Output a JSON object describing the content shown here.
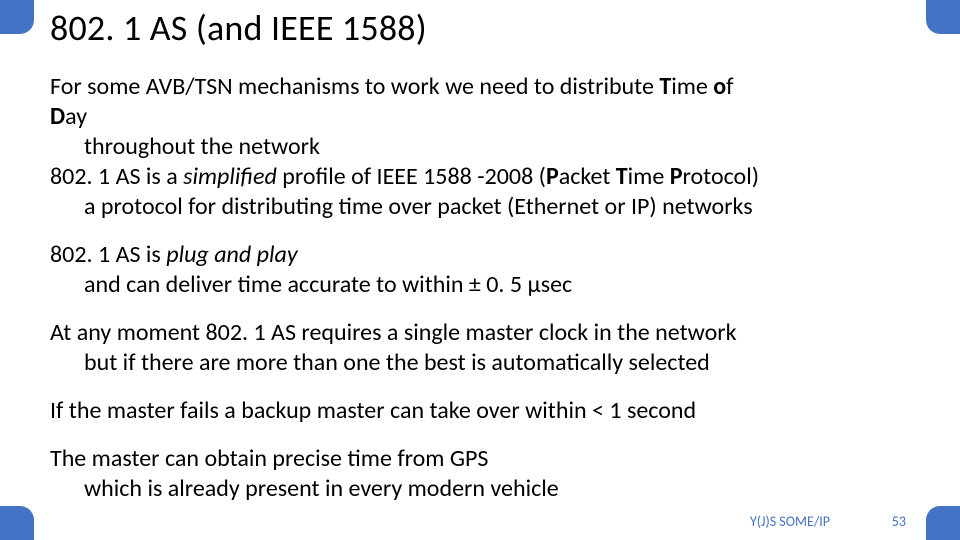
{
  "accent_color": "#4472c4",
  "title": "802. 1 AS (and IEEE 1588)",
  "p1": {
    "l1a": "For some AVB/TSN mechanisms to work we need to distribute ",
    "l1b_T": "T",
    "l1b_rest": "ime ",
    "l1c_o": "o",
    "l1c_rest": "f",
    "l2_D": "D",
    "l2_rest": "ay",
    "l3": "throughout the network",
    "l4a": "802. 1 AS is a ",
    "l4b": "simplified",
    "l4c": " profile of IEEE 1588 -2008 (",
    "l4d_P": "P",
    "l4d_rest": "acket ",
    "l4e_T": "T",
    "l4e_rest": "ime ",
    "l4f_P": "P",
    "l4f_rest": "rotocol)",
    "l5": "a protocol for distributing time over packet (Ethernet or IP) networks"
  },
  "p2": {
    "l1a": "802. 1 AS is ",
    "l1b": "plug and play",
    "l2": "and can deliver time accurate to within ± 0. 5 µsec"
  },
  "p3": {
    "l1": "At any moment 802. 1 AS requires a single master clock in the network",
    "l2": "but if there are more than one the best is automatically selected"
  },
  "p4": {
    "l1": "If the master fails a backup master can take over within < 1 second"
  },
  "p5": {
    "l1": "The master can obtain precise time from GPS",
    "l2": "which is already present in every modern vehicle"
  },
  "footer_label": "Y(J)S  SOME/IP",
  "footer_page": "53"
}
